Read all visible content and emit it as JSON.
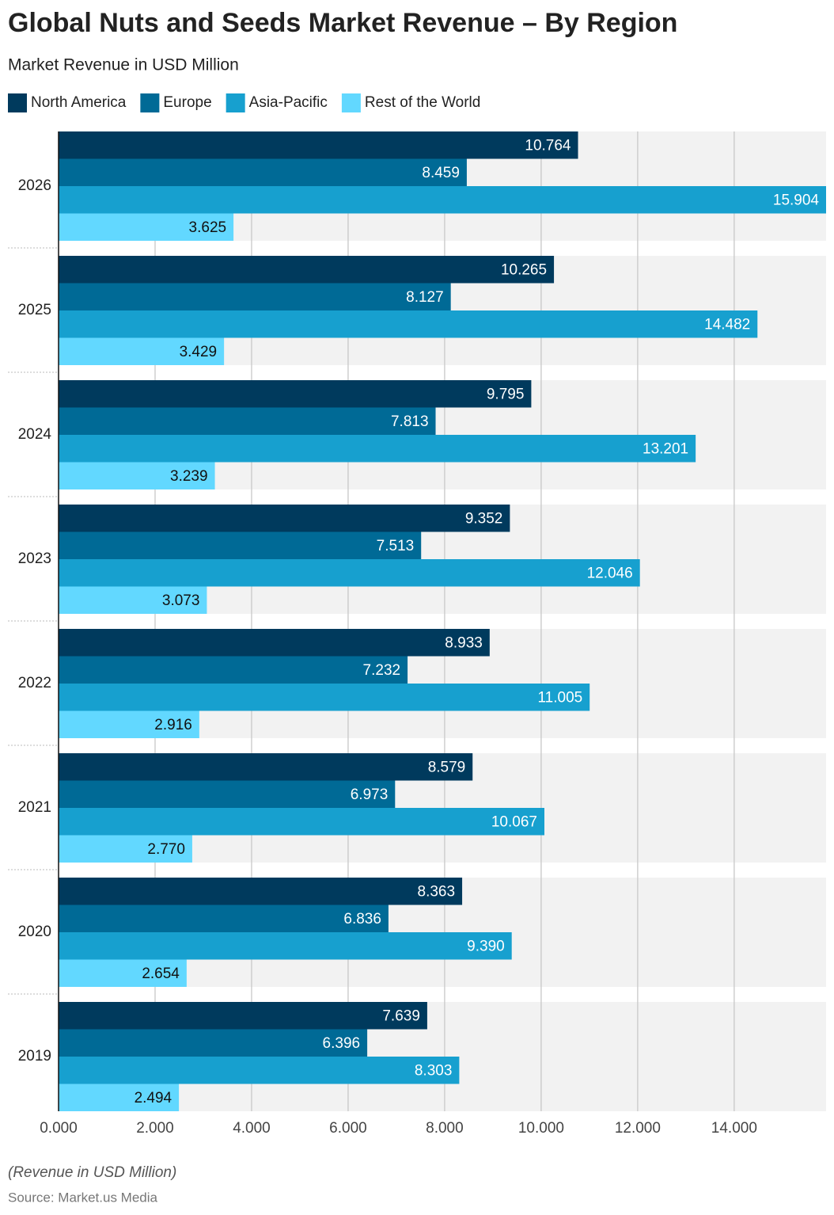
{
  "chart_data": {
    "type": "hbar",
    "title": "Global Nuts and Seeds Market Revenue – By Region",
    "subtitle": "Market Revenue in USD Million",
    "categories": [
      "2026",
      "2025",
      "2024",
      "2023",
      "2022",
      "2021",
      "2020",
      "2019"
    ],
    "series": [
      {
        "name": "North America",
        "color": "#003a5d",
        "values": [
          10.764,
          10.265,
          9.795,
          9.352,
          8.933,
          8.579,
          8.363,
          7.639
        ],
        "value_labels": [
          "10.764",
          "10.265",
          "9.795",
          "9.352",
          "8.933",
          "8.579",
          "8.363",
          "7.639"
        ]
      },
      {
        "name": "Europe",
        "color": "#006a96",
        "values": [
          8.459,
          8.127,
          7.813,
          7.513,
          7.232,
          6.973,
          6.836,
          6.396
        ],
        "value_labels": [
          "8.459",
          "8.127",
          "7.813",
          "7.513",
          "7.232",
          "6.973",
          "6.836",
          "6.396"
        ]
      },
      {
        "name": "Asia-Pacific",
        "color": "#17a0cf",
        "values": [
          15.904,
          14.482,
          13.201,
          12.046,
          11.005,
          10.067,
          9.39,
          8.303
        ],
        "value_labels": [
          "15.904",
          "14.482",
          "13.201",
          "12.046",
          "11.005",
          "10.067",
          "9.390",
          "8.303"
        ]
      },
      {
        "name": "Rest of the World",
        "color": "#62d8ff",
        "values": [
          3.625,
          3.429,
          3.239,
          3.073,
          2.916,
          2.77,
          2.654,
          2.494
        ],
        "value_labels": [
          "3.625",
          "3.429",
          "3.239",
          "3.073",
          "2.916",
          "2.770",
          "2.654",
          "2.494"
        ]
      }
    ],
    "xlim": [
      0,
      15.904
    ],
    "xticks": [
      {
        "value": 0,
        "label": "0.000"
      },
      {
        "value": 2,
        "label": "2.000"
      },
      {
        "value": 4,
        "label": "4.000"
      },
      {
        "value": 6,
        "label": "6.000"
      },
      {
        "value": 8,
        "label": "8.000"
      },
      {
        "value": 10,
        "label": "10.000"
      },
      {
        "value": 12,
        "label": "12.000"
      },
      {
        "value": 14,
        "label": "14.000"
      }
    ],
    "grid": true,
    "note": "(Revenue in USD Million)",
    "source": "Source: Market.us Media"
  }
}
